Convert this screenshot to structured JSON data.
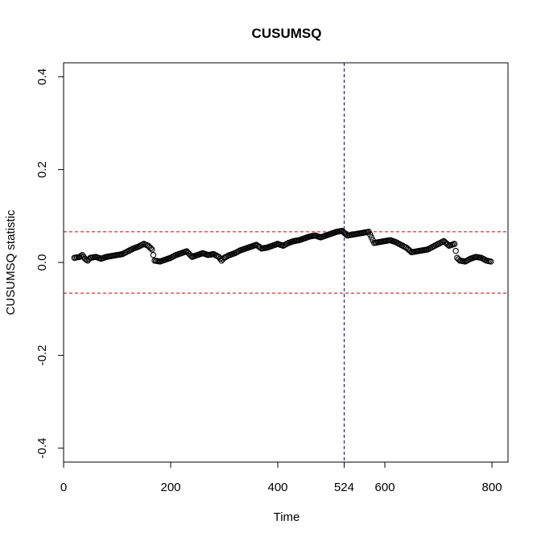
{
  "chart_data": {
    "type": "scatter",
    "title": "CUSUMSQ",
    "xlabel": "Time",
    "ylabel": "CUSUMSQ statistic",
    "xlim": [
      0,
      830
    ],
    "ylim": [
      -0.43,
      0.43
    ],
    "x_ticks": [
      0,
      200,
      400,
      524,
      600,
      800
    ],
    "y_ticks": [
      -0.4,
      -0.2,
      0.0,
      0.2,
      0.4
    ],
    "y_tick_labels": [
      "-0.4",
      "-0.2",
      "0.0",
      "0.2",
      "0.4"
    ],
    "grid": false,
    "legend": "none",
    "series": [
      {
        "marker": "open-circle",
        "color": "#000000",
        "points": [
          [
            20,
            0.01
          ],
          [
            30,
            0.012
          ],
          [
            35,
            0.016
          ],
          [
            40,
            0.008
          ],
          [
            45,
            0.004
          ],
          [
            50,
            0.01
          ],
          [
            60,
            0.012
          ],
          [
            70,
            0.008
          ],
          [
            80,
            0.012
          ],
          [
            90,
            0.014
          ],
          [
            100,
            0.016
          ],
          [
            110,
            0.018
          ],
          [
            120,
            0.024
          ],
          [
            130,
            0.03
          ],
          [
            140,
            0.034
          ],
          [
            150,
            0.04
          ],
          [
            158,
            0.036
          ],
          [
            165,
            0.028
          ],
          [
            170,
            0.004
          ],
          [
            180,
            0.002
          ],
          [
            190,
            0.006
          ],
          [
            200,
            0.01
          ],
          [
            210,
            0.016
          ],
          [
            220,
            0.02
          ],
          [
            230,
            0.024
          ],
          [
            240,
            0.012
          ],
          [
            250,
            0.016
          ],
          [
            260,
            0.02
          ],
          [
            270,
            0.016
          ],
          [
            280,
            0.018
          ],
          [
            290,
            0.012
          ],
          [
            295,
            0.004
          ],
          [
            300,
            0.01
          ],
          [
            310,
            0.016
          ],
          [
            320,
            0.02
          ],
          [
            330,
            0.026
          ],
          [
            340,
            0.03
          ],
          [
            350,
            0.034
          ],
          [
            360,
            0.038
          ],
          [
            370,
            0.03
          ],
          [
            380,
            0.032
          ],
          [
            390,
            0.036
          ],
          [
            400,
            0.04
          ],
          [
            410,
            0.036
          ],
          [
            420,
            0.042
          ],
          [
            430,
            0.046
          ],
          [
            440,
            0.048
          ],
          [
            450,
            0.052
          ],
          [
            460,
            0.056
          ],
          [
            470,
            0.058
          ],
          [
            480,
            0.054
          ],
          [
            490,
            0.058
          ],
          [
            500,
            0.062
          ],
          [
            510,
            0.066
          ],
          [
            520,
            0.068
          ],
          [
            530,
            0.058
          ],
          [
            540,
            0.06
          ],
          [
            550,
            0.062
          ],
          [
            560,
            0.064
          ],
          [
            570,
            0.066
          ],
          [
            580,
            0.042
          ],
          [
            590,
            0.044
          ],
          [
            600,
            0.046
          ],
          [
            610,
            0.048
          ],
          [
            620,
            0.044
          ],
          [
            630,
            0.038
          ],
          [
            640,
            0.032
          ],
          [
            650,
            0.022
          ],
          [
            660,
            0.024
          ],
          [
            670,
            0.026
          ],
          [
            680,
            0.028
          ],
          [
            690,
            0.034
          ],
          [
            700,
            0.04
          ],
          [
            710,
            0.046
          ],
          [
            720,
            0.036
          ],
          [
            730,
            0.04
          ],
          [
            735,
            0.01
          ],
          [
            740,
            0.004
          ],
          [
            750,
            0.002
          ],
          [
            760,
            0.008
          ],
          [
            770,
            0.012
          ],
          [
            780,
            0.01
          ],
          [
            790,
            0.004
          ],
          [
            798,
            0.002
          ]
        ]
      }
    ],
    "reference_lines": [
      {
        "orientation": "horizontal",
        "value": 0.066,
        "color": "#cc0000",
        "style": "dashed"
      },
      {
        "orientation": "horizontal",
        "value": -0.066,
        "color": "#cc0000",
        "style": "dashed"
      },
      {
        "orientation": "vertical",
        "value": 524,
        "color": "#00008b",
        "style": "dashed"
      }
    ]
  }
}
